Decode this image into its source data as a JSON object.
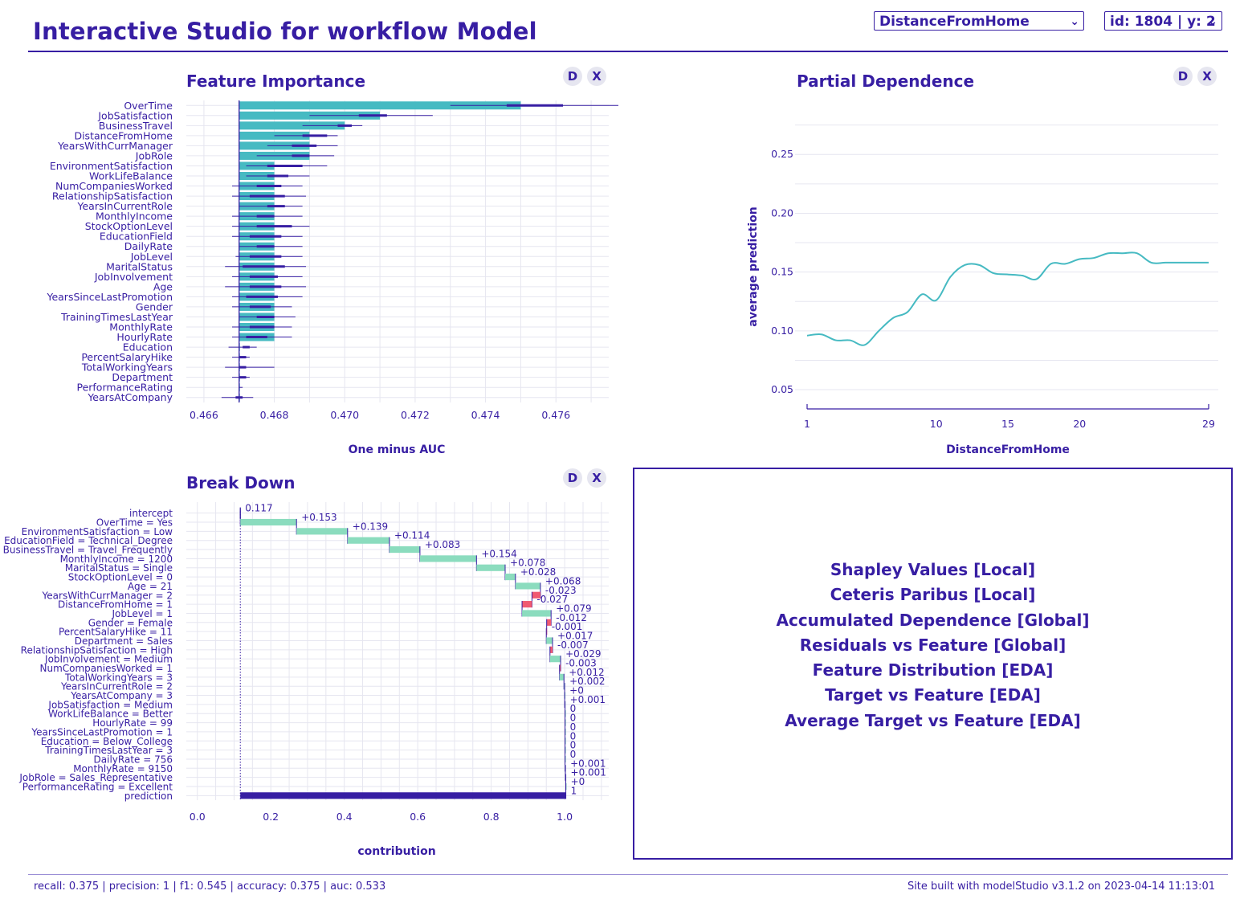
{
  "header": {
    "title": "Interactive Studio for workflow Model",
    "variable_select": "DistanceFromHome",
    "observation_select": "id: 1804 | y: 2"
  },
  "panel_controls": {
    "details": "D",
    "close": "X"
  },
  "colors": {
    "primary": "#371ea3",
    "fi_bar": "#46bac2",
    "pos": "#8bdcbe",
    "neg": "#f05a71",
    "grid": "#e6e6f0"
  },
  "feature_importance": {
    "title": "Feature Importance",
    "chart_data": {
      "type": "bar",
      "title": "Feature Importance",
      "xlabel": "One minus AUC",
      "baseline": 0.467,
      "xlim": [
        0.4655,
        0.4775
      ],
      "xticks": [
        0.466,
        0.468,
        0.47,
        0.472,
        0.474,
        0.476
      ],
      "categories": [
        "OverTime",
        "JobSatisfaction",
        "BusinessTravel",
        "DistanceFromHome",
        "YearsWithCurrManager",
        "JobRole",
        "EnvironmentSatisfaction",
        "WorkLifeBalance",
        "NumCompaniesWorked",
        "RelationshipSatisfaction",
        "YearsInCurrentRole",
        "MonthlyIncome",
        "StockOptionLevel",
        "EducationField",
        "DailyRate",
        "JobLevel",
        "MaritalStatus",
        "JobInvolvement",
        "Age",
        "YearsSinceLastPromotion",
        "Gender",
        "TrainingTimesLastYear",
        "MonthlyRate",
        "HourlyRate",
        "Education",
        "PercentSalaryHike",
        "TotalWorkingYears",
        "Department",
        "PerformanceRating",
        "YearsAtCompany"
      ],
      "values": [
        0.475,
        0.471,
        0.47,
        0.469,
        0.469,
        0.469,
        0.468,
        0.468,
        0.468,
        0.468,
        0.468,
        0.468,
        0.468,
        0.468,
        0.468,
        0.468,
        0.468,
        0.468,
        0.468,
        0.468,
        0.468,
        0.468,
        0.468,
        0.468,
        0.467,
        0.467,
        0.467,
        0.467,
        0.467,
        0.467
      ],
      "box_low": [
        0.4746,
        0.4704,
        0.4698,
        0.4688,
        0.4685,
        0.4685,
        0.4678,
        0.4678,
        0.4675,
        0.4673,
        0.4678,
        0.4675,
        0.4675,
        0.4673,
        0.4675,
        0.4673,
        0.4671,
        0.4673,
        0.4673,
        0.4672,
        0.4673,
        0.4675,
        0.4673,
        0.4672,
        0.4671,
        0.467,
        0.467,
        0.467,
        0.467,
        0.4669
      ],
      "box_high": [
        0.4762,
        0.4712,
        0.4702,
        0.4695,
        0.4692,
        0.469,
        0.4688,
        0.4684,
        0.4682,
        0.4683,
        0.4683,
        0.468,
        0.4685,
        0.4682,
        0.468,
        0.4682,
        0.4683,
        0.4681,
        0.4682,
        0.4681,
        0.4679,
        0.468,
        0.468,
        0.4678,
        0.4673,
        0.4672,
        0.4672,
        0.4672,
        0.467,
        0.4671
      ],
      "whisk_low": [
        0.473,
        0.469,
        0.4688,
        0.468,
        0.4678,
        0.4675,
        0.4672,
        0.4672,
        0.4668,
        0.4668,
        0.467,
        0.4668,
        0.4668,
        0.4668,
        0.467,
        0.4669,
        0.4666,
        0.4668,
        0.4666,
        0.4668,
        0.4668,
        0.467,
        0.4668,
        0.4668,
        0.4667,
        0.4668,
        0.4666,
        0.4668,
        0.467,
        0.4665
      ],
      "whisk_high": [
        0.4779,
        0.4725,
        0.4705,
        0.4698,
        0.4698,
        0.4697,
        0.4695,
        0.469,
        0.4688,
        0.4689,
        0.4688,
        0.4688,
        0.469,
        0.4688,
        0.4688,
        0.4688,
        0.4689,
        0.4688,
        0.4689,
        0.4688,
        0.4685,
        0.4686,
        0.4685,
        0.4685,
        0.4675,
        0.4673,
        0.468,
        0.4673,
        0.4671,
        0.4674
      ]
    }
  },
  "partial_dependence": {
    "title": "Partial Dependence",
    "chart_data": {
      "type": "line",
      "title": "Partial Dependence",
      "xlabel": "DistanceFromHome",
      "ylabel": "average prediction",
      "xlim": [
        1,
        29
      ],
      "ylim": [
        0.035,
        0.285
      ],
      "xticks": [
        1,
        10,
        15,
        20,
        29
      ],
      "yticks": [
        0.05,
        0.1,
        0.15,
        0.2,
        0.25
      ],
      "series": [
        {
          "x": [
            1,
            2,
            3,
            4,
            5,
            6,
            7,
            8,
            9,
            10,
            11,
            12,
            13,
            14,
            15,
            16,
            17,
            18,
            19,
            20,
            21,
            22,
            23,
            24,
            25,
            26,
            27,
            28,
            29
          ],
          "values": [
            0.096,
            0.097,
            0.092,
            0.092,
            0.088,
            0.1,
            0.111,
            0.116,
            0.131,
            0.126,
            0.146,
            0.156,
            0.156,
            0.149,
            0.148,
            0.147,
            0.144,
            0.157,
            0.157,
            0.161,
            0.162,
            0.166,
            0.166,
            0.166,
            0.158,
            0.158,
            0.158,
            0.158,
            0.158
          ]
        }
      ]
    }
  },
  "break_down": {
    "title": "Break Down",
    "chart_data": {
      "type": "bar",
      "title": "Break Down",
      "xlabel": "contribution",
      "xlim": [
        -0.03,
        1.12
      ],
      "xticks": [
        0.0,
        0.2,
        0.4,
        0.6,
        0.8,
        1.0
      ],
      "tick_labels": [
        "0.0",
        "0.2",
        "0.4",
        "0.6",
        "0.8",
        "1.0"
      ],
      "intercept": 0.117,
      "categories": [
        "intercept",
        "OverTime = Yes",
        "EnvironmentSatisfaction = Low",
        "EducationField = Technical_Degree",
        "BusinessTravel = Travel_Frequently",
        "MonthlyIncome = 1200",
        "MaritalStatus = Single",
        "StockOptionLevel = 0",
        "Age = 21",
        "YearsWithCurrManager = 2",
        "DistanceFromHome = 1",
        "JobLevel = 1",
        "Gender = Female",
        "PercentSalaryHike = 11",
        "Department = Sales",
        "RelationshipSatisfaction = High",
        "JobInvolvement = Medium",
        "NumCompaniesWorked = 1",
        "TotalWorkingYears = 3",
        "YearsInCurrentRole = 2",
        "YearsAtCompany = 3",
        "JobSatisfaction = Medium",
        "WorkLifeBalance = Better",
        "HourlyRate = 99",
        "YearsSinceLastPromotion = 1",
        "Education = Below_College",
        "TrainingTimesLastYear = 3",
        "DailyRate = 756",
        "MonthlyRate = 9150",
        "JobRole = Sales_Representative",
        "PerformanceRating = Excellent",
        "prediction"
      ],
      "values": [
        0.117,
        0.153,
        0.139,
        0.114,
        0.083,
        0.154,
        0.078,
        0.028,
        0.068,
        -0.023,
        -0.027,
        0.079,
        -0.012,
        -0.001,
        0.017,
        -0.007,
        0.029,
        -0.003,
        0.012,
        0.002,
        0.0001,
        0.001,
        0,
        0,
        0,
        0,
        0,
        0,
        0.001,
        0.001,
        0.0001,
        1
      ],
      "value_labels": [
        "0.117",
        "+0.153",
        "+0.139",
        "+0.114",
        "+0.083",
        "+0.154",
        "+0.078",
        "+0.028",
        "+0.068",
        "-0.023",
        "-0.027",
        "+0.079",
        "-0.012",
        "-0.001",
        "+0.017",
        "-0.007",
        "+0.029",
        "-0.003",
        "+0.012",
        "+0.002",
        "+0",
        "+0.001",
        "0",
        "0",
        "0",
        "0",
        "0",
        "0",
        "+0.001",
        "+0.001",
        "+0",
        "1"
      ]
    }
  },
  "menu": {
    "items": [
      "Shapley Values [Local]",
      "Ceteris Paribus [Local]",
      "Accumulated Dependence [Global]",
      "Residuals vs Feature [Global]",
      "Feature Distribution [EDA]",
      "Target vs Feature [EDA]",
      "Average Target vs Feature [EDA]"
    ]
  },
  "footer": {
    "metrics": "recall: 0.375 | precision: 1 | f1: 0.545 | accuracy: 0.375 | auc: 0.533",
    "built": "Site built with modelStudio v3.1.2 on 2023-04-14 11:13:01"
  }
}
